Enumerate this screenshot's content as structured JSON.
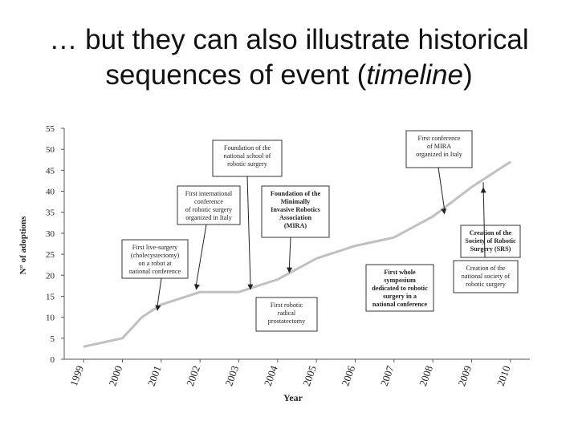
{
  "slide": {
    "title_line1": "… but they can also illustrate historical",
    "title_line2_pre": "sequences of event (",
    "title_line2_italic": "timeline",
    "title_line2_post": ")"
  },
  "chart_data": {
    "type": "line",
    "title": "",
    "xlabel": "Year",
    "ylabel": "N° of adoptions",
    "ylim": [
      0,
      55
    ],
    "yticks": [
      0,
      5,
      10,
      15,
      20,
      25,
      30,
      35,
      40,
      45,
      50,
      55
    ],
    "categories": [
      "1999",
      "2000",
      "2001",
      "2002",
      "2003",
      "2004",
      "2005",
      "2006",
      "2007",
      "2008",
      "2009",
      "2010"
    ],
    "x": [
      1999,
      2000,
      2000.5,
      2001,
      2002,
      2003,
      2004,
      2005,
      2006,
      2007,
      2008,
      2009,
      2010
    ],
    "y": [
      3,
      5,
      10,
      13,
      16,
      16,
      19,
      24,
      27,
      29,
      34,
      41,
      47
    ],
    "grid": false,
    "line_color": "#c0c0c0",
    "annotations": [
      {
        "text": "First live-surgery (cholecystectomy) on a robot at national conference",
        "year": 2000.9,
        "value": 11.5
      },
      {
        "text": "First international conference of robotic surgery organized in Italy",
        "year": 2001.9,
        "value": 16.5
      },
      {
        "text": "Foundation of the national school of robotic surgery",
        "year": 2003.3,
        "value": 16.5
      },
      {
        "text": "Foundation of the Minimally Invasive Robotics Association (MIRA)",
        "year": 2004.3,
        "value": 20.5,
        "bold": true
      },
      {
        "text": "First robotic radical prostatectomy",
        "year": 2004.6,
        "value": 20,
        "no_arrow": true
      },
      {
        "text": "First whole symposium dedicated to robotic surgery in a national conference",
        "year": 2006.8,
        "value": 29.5,
        "no_arrow": true,
        "bold": true
      },
      {
        "text": "First conference of MIRA organized in Italy",
        "year": 2008.3,
        "value": 34.5
      },
      {
        "text": "Creation of the Society of Robotic Surgery (SRS)",
        "year": 2009.3,
        "value": 41,
        "bold": true
      },
      {
        "text": "Creation of the national society of robotic surgery",
        "year": 2009.2,
        "value": 41,
        "no_arrow": true
      }
    ]
  }
}
